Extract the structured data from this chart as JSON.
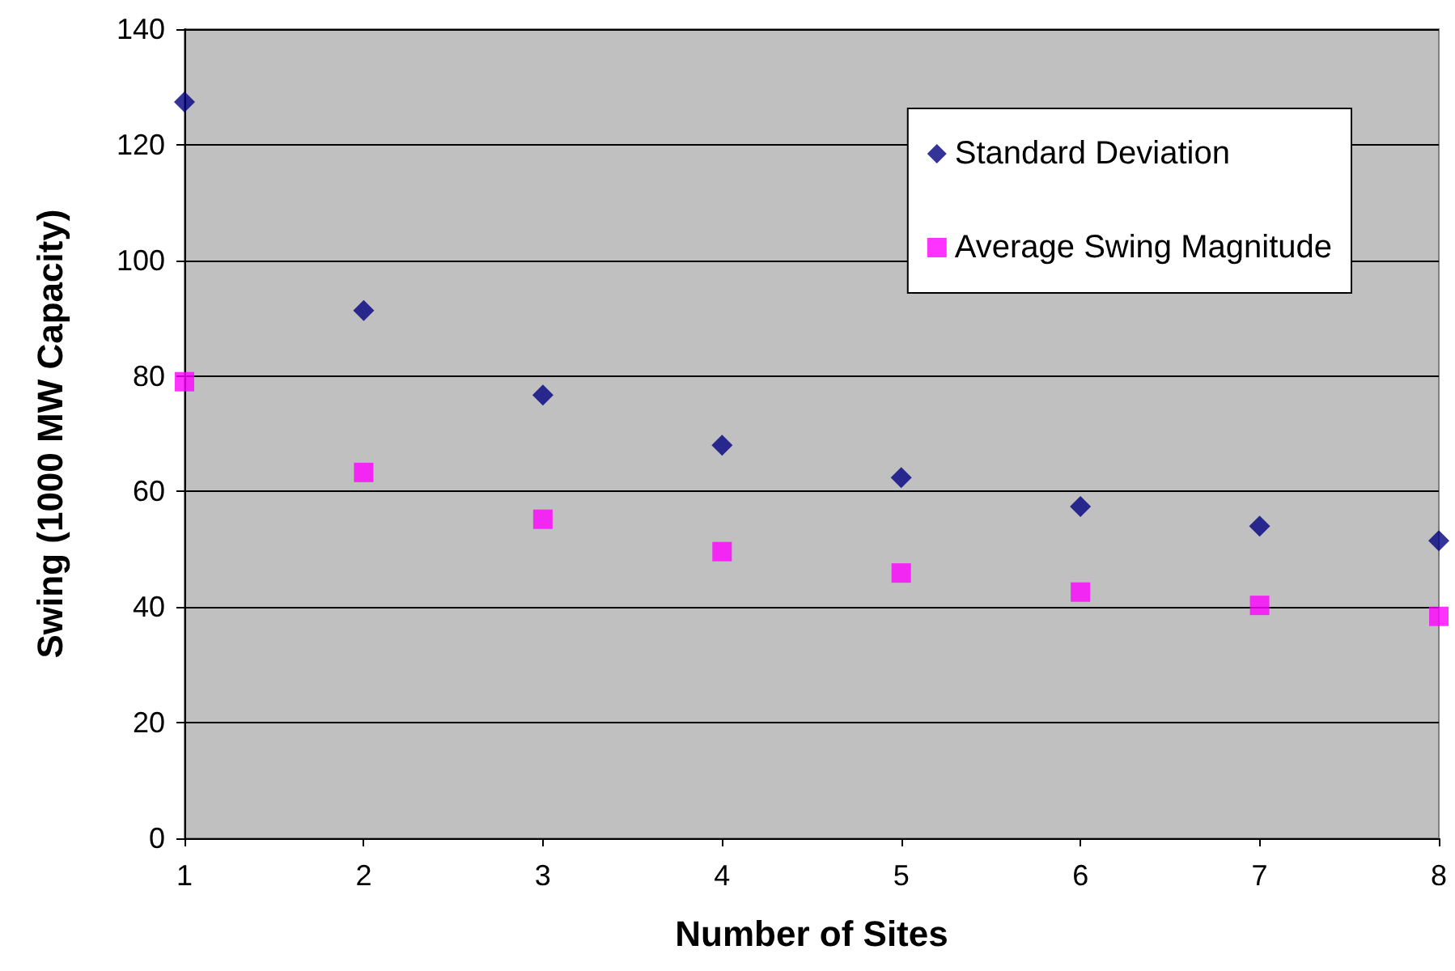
{
  "chart_data": {
    "type": "scatter",
    "xlabel": "Number of Sites",
    "ylabel": "Swing (1000 MW Capacity)",
    "x": [
      1,
      2,
      3,
      4,
      5,
      6,
      7,
      8
    ],
    "series": [
      {
        "name": "Standard Deviation",
        "color": "#000080",
        "marker": "diamond",
        "values": [
          127.4,
          91.3,
          76.7,
          68.0,
          62.4,
          57.4,
          54.0,
          51.5
        ]
      },
      {
        "name": "Average Swing Magnitude",
        "color": "#ff00ff",
        "marker": "square",
        "values": [
          79.0,
          63.3,
          55.2,
          49.6,
          45.9,
          42.6,
          40.3,
          38.4
        ]
      }
    ],
    "xlim": [
      1,
      8
    ],
    "xticks": [
      1,
      2,
      3,
      4,
      5,
      6,
      7,
      8
    ],
    "ylim": [
      0,
      140
    ],
    "yticks": [
      0,
      20,
      40,
      60,
      80,
      100,
      120,
      140
    ],
    "grid": "y",
    "legend": "top right"
  }
}
